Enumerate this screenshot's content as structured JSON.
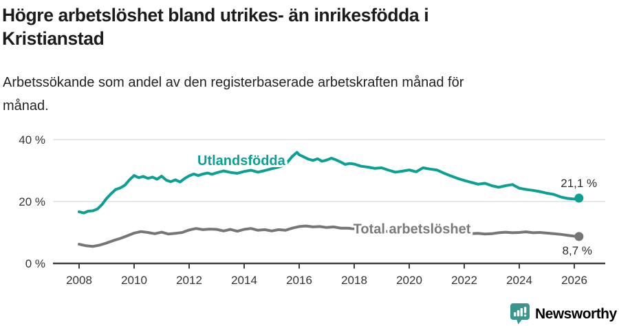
{
  "header": {
    "title_lines": [
      "Högre arbetslöshet bland utrikes- än inrikesfödda i",
      "Kristianstad"
    ],
    "subtitle_lines": [
      "Arbetssökande som andel av den registerbaserade arbetskraften månad för",
      "månad."
    ]
  },
  "footer": {
    "brand": "Newsworthy",
    "logo_color": "#39968f",
    "logo_icon": "pin-with-bar-chart-and-exclamation"
  },
  "chart_data": {
    "type": "line",
    "title": "Högre arbetslöshet bland utrikes- än inrikesfödda i Kristianstad",
    "subtitle": "Arbetssökande som andel av den registerbaserade arbetskraften månad för månad.",
    "xlabel": "",
    "ylabel": "",
    "xlim": [
      2007.05,
      2027.1
    ],
    "ylim": [
      0,
      40
    ],
    "grid": "horizontal",
    "legend_position": "inline-labels",
    "style": {
      "grid_color": "#e1e1e1",
      "axis_color": "#3d3d3d",
      "tick_label_color": "#333333"
    },
    "x_ticks": [
      {
        "value": 2008,
        "label": "2008"
      },
      {
        "value": 2010,
        "label": "2010"
      },
      {
        "value": 2012,
        "label": "2012"
      },
      {
        "value": 2014,
        "label": "2014"
      },
      {
        "value": 2016,
        "label": "2016"
      },
      {
        "value": 2018,
        "label": "2018"
      },
      {
        "value": 2020,
        "label": "2020"
      },
      {
        "value": 2022,
        "label": "2022"
      },
      {
        "value": 2024,
        "label": "2024"
      },
      {
        "value": 2026,
        "label": "2026"
      }
    ],
    "y_ticks": [
      {
        "value": 0,
        "label": "0 %"
      },
      {
        "value": 20,
        "label": "20 %"
      },
      {
        "value": 40,
        "label": "40 %"
      }
    ],
    "series": [
      {
        "name": "Utlandsfödda",
        "color": "#0aa192",
        "label_anchor": "start",
        "label_pos": {
          "x": 2012.3,
          "y": 31.8
        },
        "end_label": "21,1 %",
        "end_label_anchor": "end",
        "end_label_pos": {
          "x": 2026.83,
          "y": 24.7
        },
        "points": [
          [
            2008.0,
            16.7
          ],
          [
            2008.17,
            16.3
          ],
          [
            2008.33,
            16.9
          ],
          [
            2008.5,
            17.0
          ],
          [
            2008.67,
            17.6
          ],
          [
            2008.83,
            19.0
          ],
          [
            2009.0,
            21.0
          ],
          [
            2009.17,
            22.6
          ],
          [
            2009.33,
            23.9
          ],
          [
            2009.5,
            24.4
          ],
          [
            2009.67,
            25.3
          ],
          [
            2009.83,
            27.0
          ],
          [
            2010.0,
            28.4
          ],
          [
            2010.17,
            27.7
          ],
          [
            2010.33,
            28.1
          ],
          [
            2010.5,
            27.5
          ],
          [
            2010.67,
            27.9
          ],
          [
            2010.83,
            27.2
          ],
          [
            2011.0,
            28.2
          ],
          [
            2011.17,
            26.9
          ],
          [
            2011.33,
            26.4
          ],
          [
            2011.5,
            27.0
          ],
          [
            2011.67,
            26.3
          ],
          [
            2011.83,
            27.4
          ],
          [
            2012.0,
            28.3
          ],
          [
            2012.17,
            28.9
          ],
          [
            2012.33,
            28.4
          ],
          [
            2012.5,
            28.9
          ],
          [
            2012.67,
            29.2
          ],
          [
            2012.83,
            28.8
          ],
          [
            2013.0,
            29.3
          ],
          [
            2013.25,
            29.9
          ],
          [
            2013.5,
            29.4
          ],
          [
            2013.75,
            29.1
          ],
          [
            2014.0,
            29.7
          ],
          [
            2014.25,
            30.1
          ],
          [
            2014.5,
            29.5
          ],
          [
            2014.75,
            30.0
          ],
          [
            2015.0,
            30.6
          ],
          [
            2015.25,
            31.1
          ],
          [
            2015.5,
            31.9
          ],
          [
            2015.75,
            34.6
          ],
          [
            2015.92,
            35.9
          ],
          [
            2016.0,
            35.1
          ],
          [
            2016.17,
            34.4
          ],
          [
            2016.33,
            33.7
          ],
          [
            2016.5,
            33.3
          ],
          [
            2016.67,
            33.8
          ],
          [
            2016.83,
            33.0
          ],
          [
            2017.0,
            33.4
          ],
          [
            2017.17,
            34.0
          ],
          [
            2017.33,
            33.5
          ],
          [
            2017.5,
            32.8
          ],
          [
            2017.67,
            32.0
          ],
          [
            2017.83,
            32.3
          ],
          [
            2018.0,
            32.1
          ],
          [
            2018.25,
            31.4
          ],
          [
            2018.5,
            31.1
          ],
          [
            2018.75,
            30.7
          ],
          [
            2019.0,
            30.9
          ],
          [
            2019.25,
            30.1
          ],
          [
            2019.5,
            29.5
          ],
          [
            2019.75,
            29.8
          ],
          [
            2020.0,
            30.2
          ],
          [
            2020.25,
            29.6
          ],
          [
            2020.5,
            30.9
          ],
          [
            2020.75,
            30.5
          ],
          [
            2021.0,
            30.2
          ],
          [
            2021.25,
            29.2
          ],
          [
            2021.5,
            28.3
          ],
          [
            2021.75,
            27.5
          ],
          [
            2022.0,
            26.8
          ],
          [
            2022.25,
            26.2
          ],
          [
            2022.5,
            25.6
          ],
          [
            2022.75,
            25.9
          ],
          [
            2023.0,
            25.1
          ],
          [
            2023.25,
            24.6
          ],
          [
            2023.5,
            25.1
          ],
          [
            2023.75,
            25.5
          ],
          [
            2024.0,
            24.3
          ],
          [
            2024.25,
            23.9
          ],
          [
            2024.5,
            23.6
          ],
          [
            2024.75,
            23.2
          ],
          [
            2025.0,
            22.7
          ],
          [
            2025.25,
            22.3
          ],
          [
            2025.5,
            21.5
          ],
          [
            2025.75,
            21.0
          ],
          [
            2026.0,
            20.8
          ],
          [
            2026.17,
            21.1
          ]
        ]
      },
      {
        "name": "Total arbetslöshet",
        "color": "#767676",
        "label_color": "#7a7a7a",
        "label_anchor": "middle",
        "label_pos": {
          "x": 2020.1,
          "y": 9.7
        },
        "end_label": "8,7 %",
        "end_label_anchor": "end",
        "end_label_pos": {
          "x": 2026.65,
          "y": 2.9
        },
        "points": [
          [
            2008.0,
            6.2
          ],
          [
            2008.25,
            5.7
          ],
          [
            2008.5,
            5.5
          ],
          [
            2008.75,
            5.9
          ],
          [
            2009.0,
            6.6
          ],
          [
            2009.25,
            7.4
          ],
          [
            2009.5,
            8.1
          ],
          [
            2009.75,
            8.9
          ],
          [
            2010.0,
            9.8
          ],
          [
            2010.25,
            10.3
          ],
          [
            2010.5,
            10.0
          ],
          [
            2010.75,
            9.6
          ],
          [
            2011.0,
            10.1
          ],
          [
            2011.25,
            9.5
          ],
          [
            2011.5,
            9.7
          ],
          [
            2011.75,
            10.0
          ],
          [
            2012.0,
            10.8
          ],
          [
            2012.25,
            11.3
          ],
          [
            2012.5,
            10.9
          ],
          [
            2012.75,
            11.1
          ],
          [
            2013.0,
            11.0
          ],
          [
            2013.25,
            10.5
          ],
          [
            2013.5,
            11.0
          ],
          [
            2013.75,
            10.4
          ],
          [
            2014.0,
            11.0
          ],
          [
            2014.25,
            11.3
          ],
          [
            2014.5,
            10.7
          ],
          [
            2014.75,
            10.9
          ],
          [
            2015.0,
            10.5
          ],
          [
            2015.25,
            10.9
          ],
          [
            2015.5,
            10.7
          ],
          [
            2015.75,
            11.4
          ],
          [
            2016.0,
            11.9
          ],
          [
            2016.25,
            12.1
          ],
          [
            2016.5,
            11.8
          ],
          [
            2016.75,
            11.9
          ],
          [
            2017.0,
            11.6
          ],
          [
            2017.25,
            11.8
          ],
          [
            2017.5,
            11.4
          ],
          [
            2017.75,
            11.4
          ],
          [
            2018.0,
            11.2
          ],
          [
            2018.25,
            11.0
          ],
          [
            2018.5,
            10.8
          ],
          [
            2018.75,
            10.6
          ],
          [
            2019.0,
            10.5
          ],
          [
            2019.25,
            10.3
          ],
          [
            2019.5,
            10.6
          ],
          [
            2019.75,
            10.9
          ],
          [
            2020.0,
            11.2
          ],
          [
            2020.25,
            11.6
          ],
          [
            2020.5,
            11.8
          ],
          [
            2020.75,
            11.5
          ],
          [
            2021.0,
            11.2
          ],
          [
            2021.25,
            10.8
          ],
          [
            2021.5,
            10.3
          ],
          [
            2021.75,
            10.0
          ],
          [
            2022.0,
            9.8
          ],
          [
            2022.25,
            9.6
          ],
          [
            2022.5,
            9.7
          ],
          [
            2022.75,
            9.5
          ],
          [
            2023.0,
            9.6
          ],
          [
            2023.25,
            9.9
          ],
          [
            2023.5,
            10.1
          ],
          [
            2023.75,
            9.9
          ],
          [
            2024.0,
            10.0
          ],
          [
            2024.25,
            10.2
          ],
          [
            2024.5,
            9.9
          ],
          [
            2024.75,
            10.0
          ],
          [
            2025.0,
            9.8
          ],
          [
            2025.25,
            9.6
          ],
          [
            2025.5,
            9.4
          ],
          [
            2025.75,
            9.1
          ],
          [
            2026.0,
            8.8
          ],
          [
            2026.17,
            8.7
          ]
        ]
      }
    ]
  }
}
